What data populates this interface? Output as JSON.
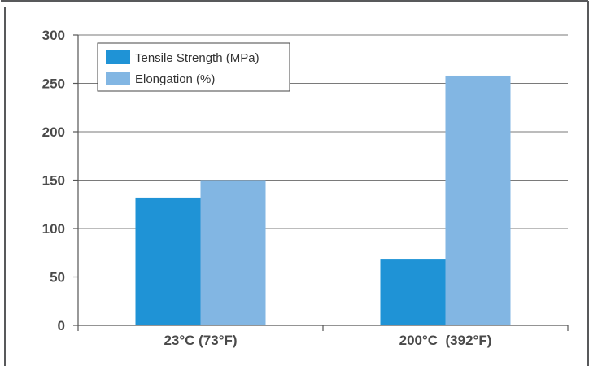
{
  "chart_data": {
    "type": "bar",
    "categories": [
      "23°C (73°F)",
      "200°C  (392°F)"
    ],
    "series": [
      {
        "name": "Tensile Strength (MPa)",
        "values": [
          132,
          68
        ],
        "color": "#1f93d6"
      },
      {
        "name": "Elongation (%)",
        "values": [
          150,
          258
        ],
        "color": "#82b6e3"
      }
    ],
    "ylim": [
      0,
      300
    ],
    "yticks": [
      0,
      50,
      100,
      150,
      200,
      250,
      300
    ],
    "grid": true,
    "legend_position": "top-left"
  }
}
